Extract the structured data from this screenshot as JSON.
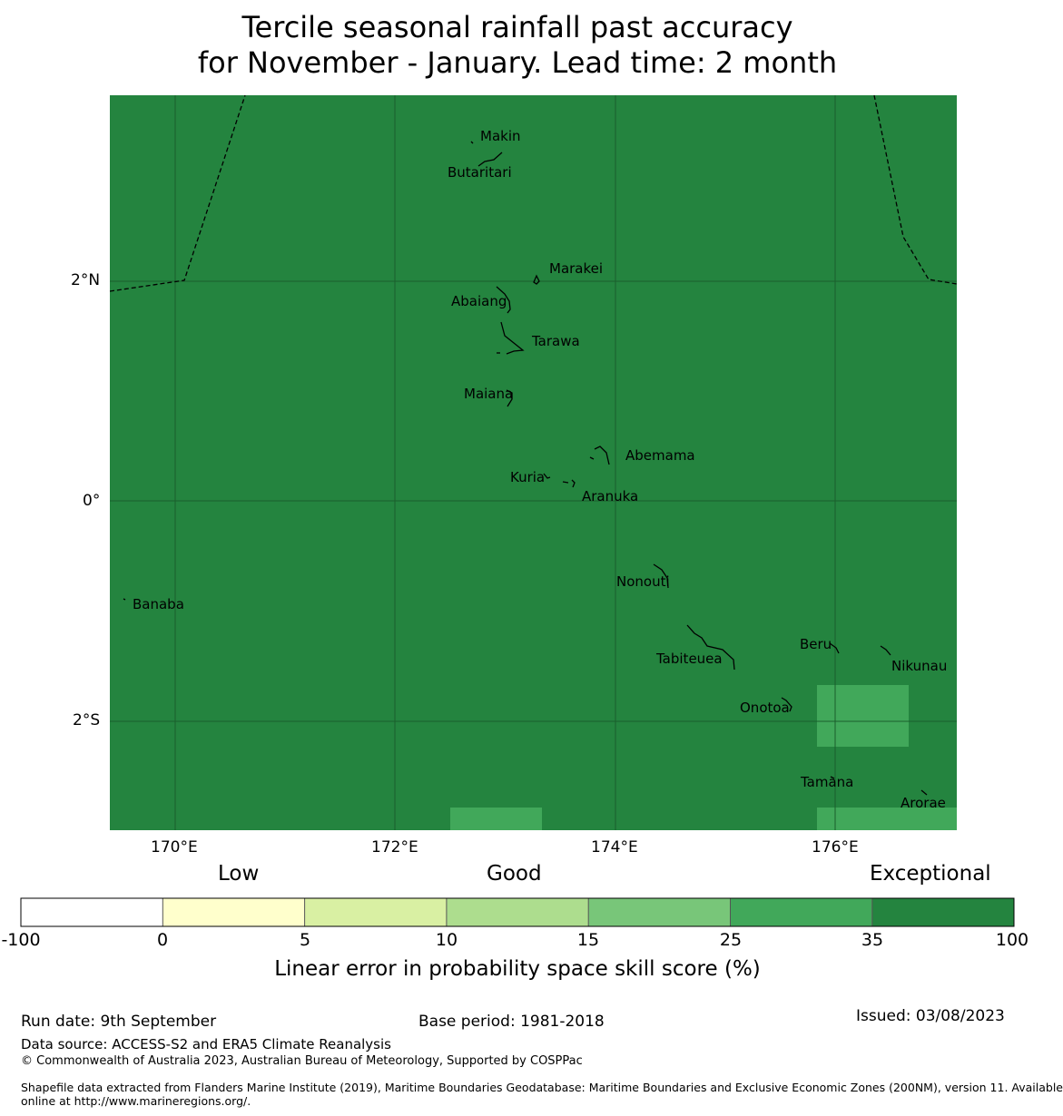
{
  "title": {
    "line1": "Tercile seasonal rainfall past accuracy",
    "line2": "for November - January. Lead time: 2 month"
  },
  "map": {
    "background_color": "#24843f",
    "x_ticks": [
      "170°E",
      "172°E",
      "174°E",
      "176°E"
    ],
    "y_ticks": [
      "2°N",
      "0°",
      "2°S"
    ],
    "islands": [
      "Makin",
      "Butaritari",
      "Marakei",
      "Abaiang",
      "Tarawa",
      "Maiana",
      "Abemama",
      "Kuria",
      "Aranuka",
      "Nonouti",
      "Banaba",
      "Beru",
      "Nikunau",
      "Tabiteuea",
      "Onotoa",
      "Tamana",
      "Arorae"
    ]
  },
  "colorbar": {
    "category_labels": [
      "Low",
      "Good",
      "Exceptional"
    ],
    "ticks": [
      "-100",
      "0",
      "5",
      "10",
      "15",
      "25",
      "35",
      "100"
    ],
    "colors": [
      "#ffffff",
      "#ffffcc",
      "#d9f0a3",
      "#addd8e",
      "#78c679",
      "#41a85a",
      "#24843f"
    ],
    "label": "Linear error in probability space skill score (%)"
  },
  "footer": {
    "run_date": "Run date: 9th September",
    "base_period": "Base period: 1981-2018",
    "issued": "Issued: 03/08/2023",
    "data_source": "Data source: ACCESS-S2 and ERA5 Climate Reanalysis",
    "copyright": "© Commonwealth of Australia 2023, Australian Bureau of Meteorology, Supported by COSPPac",
    "shapefile_line1": "Shapefile data extracted from Flanders Marine Institute (2019), Maritime Boundaries Geodatabase: Maritime Boundaries and Exclusive Economic Zones (200NM), version 11. Available",
    "shapefile_line2": "online at http://www.marineregions.org/."
  }
}
